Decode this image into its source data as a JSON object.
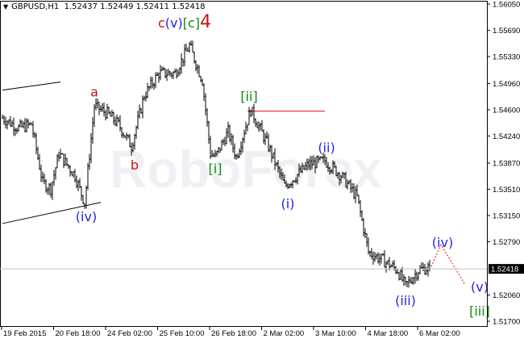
{
  "header": {
    "symbol": "GBPUSD,H1",
    "ohlc": "1.52437 1.52449 1.52411 1.52418",
    "menu_icon": "triangle-down-icon"
  },
  "watermark": "RoboForex",
  "colors": {
    "bars": "#000000",
    "wave_red": "#cc1111",
    "wave_blue": "#2222ee",
    "wave_green": "#118811",
    "resistance_line": "#ee0000",
    "forecast": "#ee0000",
    "price_label_bg": "#000000"
  },
  "chart_data": {
    "type": "bar",
    "title": "",
    "timeframe": "H1",
    "ylim": [
      1.517,
      1.5605
    ],
    "y_ticks": [
      "1.56050",
      "1.55690",
      "1.55330",
      "1.54960",
      "1.54600",
      "1.54240",
      "1.53870",
      "1.53510",
      "1.53150",
      "1.52790",
      "1.52060",
      "1.51700"
    ],
    "x_ticks": [
      "19 Feb 2015",
      "20 Feb 18:00",
      "24 Feb 02:00",
      "25 Feb 10:00",
      "26 Feb 18:00",
      "2 Mar 02:00",
      "3 Mar 10:00",
      "4 Mar 18:00",
      "6 Mar 02:00"
    ],
    "current_price": "1.52418",
    "price_path": [
      [
        0,
        1.5449
      ],
      [
        10,
        1.5435
      ],
      [
        18,
        1.544
      ],
      [
        25,
        1.536
      ],
      [
        30,
        1.5352
      ],
      [
        35,
        1.54
      ],
      [
        45,
        1.537
      ],
      [
        51,
        1.5332
      ],
      [
        57,
        1.5465
      ],
      [
        65,
        1.5455
      ],
      [
        72,
        1.544
      ],
      [
        80,
        1.541
      ],
      [
        88,
        1.548
      ],
      [
        97,
        1.551
      ],
      [
        107,
        1.551
      ],
      [
        116,
        1.5548
      ],
      [
        124,
        1.55
      ],
      [
        129,
        1.54
      ],
      [
        132,
        1.5395
      ],
      [
        140,
        1.543
      ],
      [
        145,
        1.5395
      ],
      [
        154,
        1.546
      ],
      [
        165,
        1.541
      ],
      [
        175,
        1.5355
      ],
      [
        180,
        1.5365
      ],
      [
        190,
        1.5385
      ],
      [
        200,
        1.539
      ],
      [
        210,
        1.537
      ],
      [
        220,
        1.534
      ],
      [
        227,
        1.5265
      ],
      [
        235,
        1.5255
      ],
      [
        245,
        1.524
      ],
      [
        250,
        1.5218
      ],
      [
        258,
        1.524
      ],
      [
        265,
        1.5244
      ]
    ],
    "wave_labels": [
      {
        "parts": [
          {
            "text": "c",
            "color": "#cc1111"
          },
          {
            "text": "(v)",
            "color": "#2222ee"
          },
          {
            "text": "[c]",
            "color": "#118811"
          },
          {
            "text": "4",
            "color": "#cc1111",
            "big": true
          }
        ],
        "bar": 113,
        "price": 1.5573
      },
      {
        "parts": [
          {
            "text": "a",
            "color": "#cc1111"
          }
        ],
        "bar": 57,
        "price": 1.5478
      },
      {
        "parts": [
          {
            "text": "b",
            "color": "#cc1111"
          }
        ],
        "bar": 82,
        "price": 1.5378
      },
      {
        "parts": [
          {
            "text": "(iv)",
            "color": "#2222ee"
          }
        ],
        "bar": 52,
        "price": 1.5307
      },
      {
        "parts": [
          {
            "text": "[ii]",
            "color": "#118811"
          }
        ],
        "bar": 153,
        "price": 1.5472
      },
      {
        "parts": [
          {
            "text": "[i]",
            "color": "#118811"
          }
        ],
        "bar": 132,
        "price": 1.5373
      },
      {
        "parts": [
          {
            "text": "(i)",
            "color": "#2222ee"
          }
        ],
        "bar": 177,
        "price": 1.5325
      },
      {
        "parts": [
          {
            "text": "(ii)",
            "color": "#2222ee"
          }
        ],
        "bar": 201,
        "price": 1.5402
      },
      {
        "parts": [
          {
            "text": "(iii)",
            "color": "#2222ee"
          }
        ],
        "bar": 250,
        "price": 1.5192
      },
      {
        "parts": [
          {
            "text": "(iv)",
            "color": "#2222ee"
          }
        ],
        "bar": 273,
        "price": 1.5272
      },
      {
        "parts": [
          {
            "text": "(v)",
            "color": "#2222ee"
          }
        ],
        "bar": 296,
        "price": 1.5211
      },
      {
        "parts": [
          {
            "text": "[iii]",
            "color": "#118811"
          }
        ],
        "bar": 296,
        "price": 1.5178
      }
    ],
    "resistance": {
      "price": 1.5458,
      "from_bar": 152,
      "to_bar": 200
    },
    "forecast_path": [
      [
        266,
        1.5245
      ],
      [
        272,
        1.5275
      ],
      [
        287,
        1.522
      ]
    ],
    "channel_lines": [
      [
        [
          0,
          1.5487
        ],
        [
          36,
          1.5498
        ]
      ],
      [
        [
          0,
          1.5304
        ],
        [
          61,
          1.5333
        ]
      ]
    ]
  }
}
